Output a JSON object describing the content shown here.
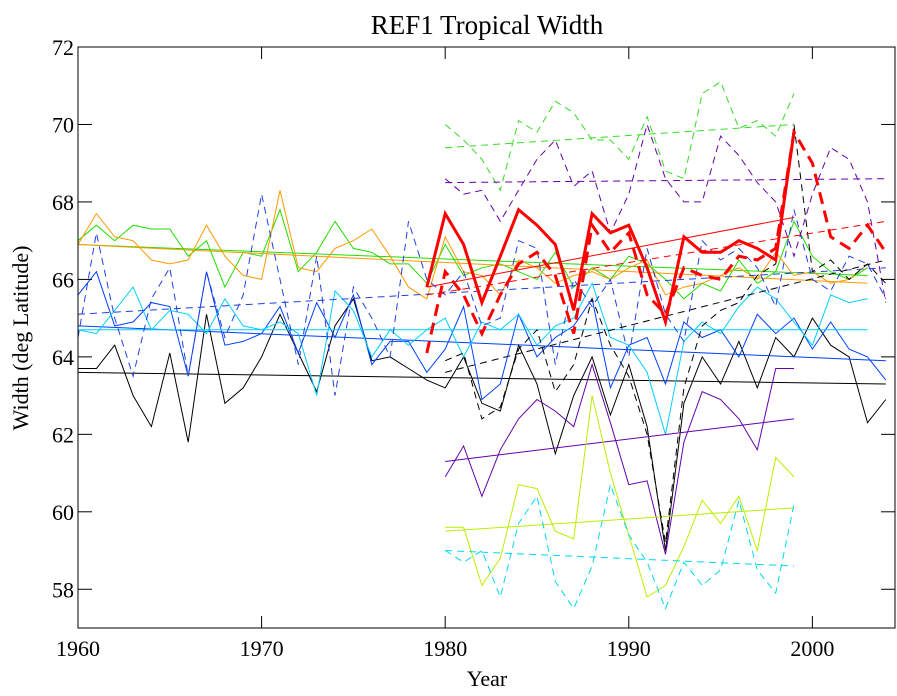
{
  "chart_data": {
    "type": "line",
    "title": "REF1 Tropical Width",
    "x_label": "Year",
    "y_label": "Width (deg Latitude)",
    "xlim": [
      1960,
      2004.5
    ],
    "ylim": [
      57,
      72
    ],
    "xticks": [
      1960,
      1970,
      1980,
      1990,
      2000
    ],
    "yticks": [
      58,
      60,
      62,
      64,
      66,
      68,
      70,
      72
    ],
    "x": [
      1960,
      1961,
      1962,
      1963,
      1964,
      1965,
      1966,
      1967,
      1968,
      1969,
      1970,
      1971,
      1972,
      1973,
      1974,
      1975,
      1976,
      1977,
      1978,
      1979,
      1980,
      1981,
      1982,
      1983,
      1984,
      1985,
      1986,
      1987,
      1988,
      1989,
      1990,
      1991,
      1992,
      1993,
      1994,
      1995,
      1996,
      1997,
      1998,
      1999,
      2000,
      2001,
      2002,
      2003,
      2004
    ],
    "series": [
      {
        "color": "#000000",
        "dash": false,
        "width": 1,
        "trend": [
          63.6,
          63.3
        ],
        "values": [
          63.7,
          63.7,
          64.3,
          63.0,
          62.2,
          64.1,
          61.8,
          65.1,
          62.8,
          63.2,
          64.0,
          65.1,
          64.1,
          63.1,
          64.8,
          65.5,
          63.9,
          64.0,
          63.7,
          63.4,
          63.2,
          64.0,
          62.8,
          62.6,
          64.3,
          63.3,
          61.5,
          63.0,
          64.0,
          62.5,
          63.8,
          62.2,
          59.0,
          62.8,
          64.0,
          63.3,
          64.4,
          63.2,
          64.5,
          64.0,
          65.0,
          64.3,
          64.0,
          62.3,
          62.9
        ]
      },
      {
        "color": "#0040ff",
        "dash": false,
        "width": 1,
        "trend": [
          64.8,
          63.9
        ],
        "values": [
          65.6,
          66.2,
          64.8,
          64.9,
          65.4,
          65.3,
          63.5,
          66.2,
          64.3,
          64.4,
          64.6,
          65.3,
          64.1,
          65.4,
          64.5,
          65.6,
          63.8,
          64.4,
          64.4,
          63.6,
          64.2,
          65.3,
          62.9,
          63.3,
          65.1,
          64.0,
          64.5,
          64.8,
          65.5,
          63.2,
          64.3,
          64.5,
          63.3,
          64.9,
          64.5,
          64.7,
          64.0,
          65.1,
          64.6,
          65.0,
          64.2,
          64.9,
          64.2,
          64.0,
          63.4
        ]
      },
      {
        "color": "#00d0ff",
        "dash": false,
        "width": 1,
        "trend": [
          64.7,
          64.7
        ],
        "values": [
          64.7,
          64.6,
          65.2,
          65.8,
          64.7,
          65.2,
          65.1,
          64.6,
          65.5,
          64.8,
          64.7,
          64.9,
          64.6,
          63.0,
          65.7,
          65.2,
          64.0,
          64.7,
          64.3,
          64.7,
          65.0,
          64.0,
          64.9,
          64.7,
          65.1,
          64.3,
          64.8,
          65.0,
          65.9,
          64.5,
          64.3,
          63.6,
          62.0,
          64.4,
          64.9,
          64.6,
          65.3,
          65.8,
          65.5,
          64.9,
          64.3,
          65.6,
          65.4,
          65.5,
          null
        ]
      },
      {
        "color": "#22dd00",
        "dash": false,
        "width": 1,
        "trend": [
          66.9,
          66.1
        ],
        "values": [
          67.0,
          67.4,
          67.0,
          67.4,
          67.3,
          67.3,
          66.6,
          67.0,
          65.8,
          66.7,
          66.6,
          67.8,
          66.2,
          66.7,
          67.5,
          66.8,
          66.7,
          66.4,
          66.4,
          65.9,
          66.9,
          66.1,
          66.3,
          66.4,
          66.2,
          66.0,
          66.7,
          65.8,
          66.3,
          66.0,
          66.6,
          66.4,
          66.0,
          65.5,
          65.9,
          65.7,
          66.5,
          65.9,
          66.2,
          67.5,
          66.6,
          66.2,
          66.0,
          66.3,
          null
        ]
      },
      {
        "color": "#ff9900",
        "dash": false,
        "width": 1,
        "trend": [
          66.9,
          65.9
        ],
        "values": [
          66.9,
          67.7,
          67.1,
          67.0,
          66.5,
          66.4,
          66.5,
          67.4,
          66.6,
          66.1,
          66.0,
          68.3,
          66.3,
          66.2,
          66.8,
          67.0,
          67.3,
          66.6,
          65.8,
          65.5,
          67.1,
          66.2,
          66.1,
          65.6,
          66.5,
          66.3,
          65.9,
          66.1,
          66.2,
          66.0,
          66.3,
          66.5,
          65.6,
          65.8,
          65.9,
          66.1,
          66.3,
          66.0,
          66.7,
          66.1,
          66.2,
          65.9,
          66.0,
          66.4,
          null
        ]
      },
      {
        "color": "#2040e0",
        "dash": true,
        "width": 1,
        "trend": [
          65.1,
          66.3
        ],
        "values": [
          64.5,
          67.2,
          65.0,
          63.5,
          65.5,
          66.3,
          63.5,
          66.2,
          64.5,
          65.6,
          68.2,
          66.0,
          63.8,
          66.6,
          63.0,
          65.8,
          65.0,
          64.0,
          67.5,
          66.0,
          65.6,
          66.2,
          64.8,
          65.0,
          67.0,
          66.8,
          63.8,
          66.0,
          65.3,
          66.0,
          64.0,
          66.8,
          65.1,
          64.4,
          67.0,
          66.5,
          66.8,
          66.3,
          65.3,
          67.8,
          66.0,
          65.7,
          66.6,
          66.4,
          65.5
        ]
      },
      {
        "color": "#6600aa",
        "dash": false,
        "width": 1,
        "trend": [
          61.3,
          62.4
        ],
        "values": [
          null,
          null,
          null,
          null,
          null,
          null,
          null,
          null,
          null,
          null,
          null,
          null,
          null,
          null,
          null,
          null,
          null,
          null,
          null,
          null,
          60.9,
          61.7,
          60.4,
          61.6,
          62.4,
          62.9,
          62.6,
          62.2,
          63.8,
          62.3,
          60.7,
          60.8,
          58.9,
          61.8,
          63.1,
          62.9,
          62.4,
          61.6,
          63.7,
          63.7,
          null,
          null,
          null,
          null,
          null
        ]
      },
      {
        "color": "#bbee00",
        "dash": false,
        "width": 1,
        "trend": [
          59.5,
          60.1
        ],
        "values": [
          null,
          null,
          null,
          null,
          null,
          null,
          null,
          null,
          null,
          null,
          null,
          null,
          null,
          null,
          null,
          null,
          null,
          null,
          null,
          null,
          59.6,
          59.6,
          58.1,
          58.8,
          60.7,
          60.6,
          59.5,
          59.3,
          63.0,
          61.0,
          59.4,
          57.8,
          58.1,
          59.1,
          60.3,
          59.7,
          60.4,
          59.0,
          61.4,
          60.9,
          null,
          null,
          null,
          null,
          null
        ]
      },
      {
        "color": "#00d8ee",
        "dash": true,
        "width": 1,
        "trend": [
          59.0,
          58.6
        ],
        "values": [
          null,
          null,
          null,
          null,
          null,
          null,
          null,
          null,
          null,
          null,
          null,
          null,
          null,
          null,
          null,
          null,
          null,
          null,
          null,
          null,
          59.0,
          58.7,
          59.0,
          57.8,
          59.7,
          60.4,
          58.2,
          57.5,
          58.6,
          60.7,
          59.4,
          58.7,
          57.5,
          58.7,
          58.1,
          58.5,
          60.3,
          58.5,
          57.9,
          60.2,
          null,
          null,
          null,
          null,
          null
        ]
      },
      {
        "color": "#33dd22",
        "dash": true,
        "width": 1,
        "trend": [
          69.4,
          70.0
        ],
        "values": [
          null,
          null,
          null,
          null,
          null,
          null,
          null,
          null,
          null,
          null,
          null,
          null,
          null,
          null,
          null,
          null,
          null,
          null,
          null,
          null,
          70.0,
          69.6,
          69.1,
          68.3,
          70.1,
          69.8,
          70.6,
          70.3,
          69.6,
          69.6,
          69.1,
          70.2,
          68.8,
          68.6,
          70.8,
          71.1,
          69.9,
          70.1,
          69.7,
          70.8,
          null,
          null,
          null,
          null,
          null
        ]
      },
      {
        "color": "#6600aa",
        "dash": true,
        "width": 1,
        "trend": [
          68.5,
          68.6
        ],
        "values": [
          null,
          null,
          null,
          null,
          null,
          null,
          null,
          null,
          null,
          null,
          null,
          null,
          null,
          null,
          null,
          null,
          null,
          null,
          null,
          null,
          68.6,
          68.2,
          68.3,
          67.5,
          68.3,
          69.1,
          69.6,
          68.4,
          68.8,
          67.2,
          68.2,
          70.0,
          68.6,
          68.0,
          68.0,
          69.7,
          69.2,
          68.5,
          68.0,
          66.6,
          68.2,
          69.4,
          69.1,
          68.0,
          65.4
        ]
      },
      {
        "color": "#000000",
        "dash": true,
        "width": 1,
        "trend": [
          63.6,
          66.5
        ],
        "values": [
          null,
          null,
          null,
          null,
          null,
          null,
          null,
          null,
          null,
          null,
          null,
          null,
          null,
          null,
          null,
          null,
          null,
          null,
          null,
          null,
          63.9,
          64.1,
          62.4,
          62.7,
          64.2,
          64.7,
          63.1,
          63.8,
          65.5,
          64.3,
          63.5,
          62.0,
          59.2,
          63.2,
          64.8,
          65.2,
          65.4,
          66.1,
          66.4,
          70.0,
          66.2,
          66.5,
          66.0,
          66.4,
          65.9
        ]
      },
      {
        "color": "#ff0000",
        "dash": false,
        "width": 3,
        "trend": [
          65.8,
          67.6
        ],
        "values": [
          null,
          null,
          null,
          null,
          null,
          null,
          null,
          null,
          null,
          null,
          null,
          null,
          null,
          null,
          null,
          null,
          null,
          null,
          null,
          65.8,
          67.7,
          66.9,
          65.4,
          66.6,
          67.8,
          67.4,
          66.9,
          65.2,
          67.7,
          67.2,
          67.4,
          66.3,
          64.9,
          67.1,
          66.7,
          66.7,
          67.0,
          66.8,
          66.5,
          69.8,
          null,
          null,
          null,
          null,
          null
        ]
      },
      {
        "color": "#ff0000",
        "dash": true,
        "width": 3,
        "trend": [
          65.6,
          67.5
        ],
        "values": [
          null,
          null,
          null,
          null,
          null,
          null,
          null,
          null,
          null,
          null,
          null,
          null,
          null,
          null,
          null,
          null,
          null,
          null,
          null,
          64.1,
          66.2,
          65.6,
          64.6,
          65.6,
          66.4,
          66.7,
          66.1,
          64.6,
          67.4,
          66.7,
          67.2,
          65.6,
          65.1,
          66.3,
          66.1,
          66.0,
          66.6,
          66.5,
          66.8,
          69.8,
          69.0,
          67.1,
          66.8,
          67.4,
          66.7
        ]
      }
    ]
  }
}
